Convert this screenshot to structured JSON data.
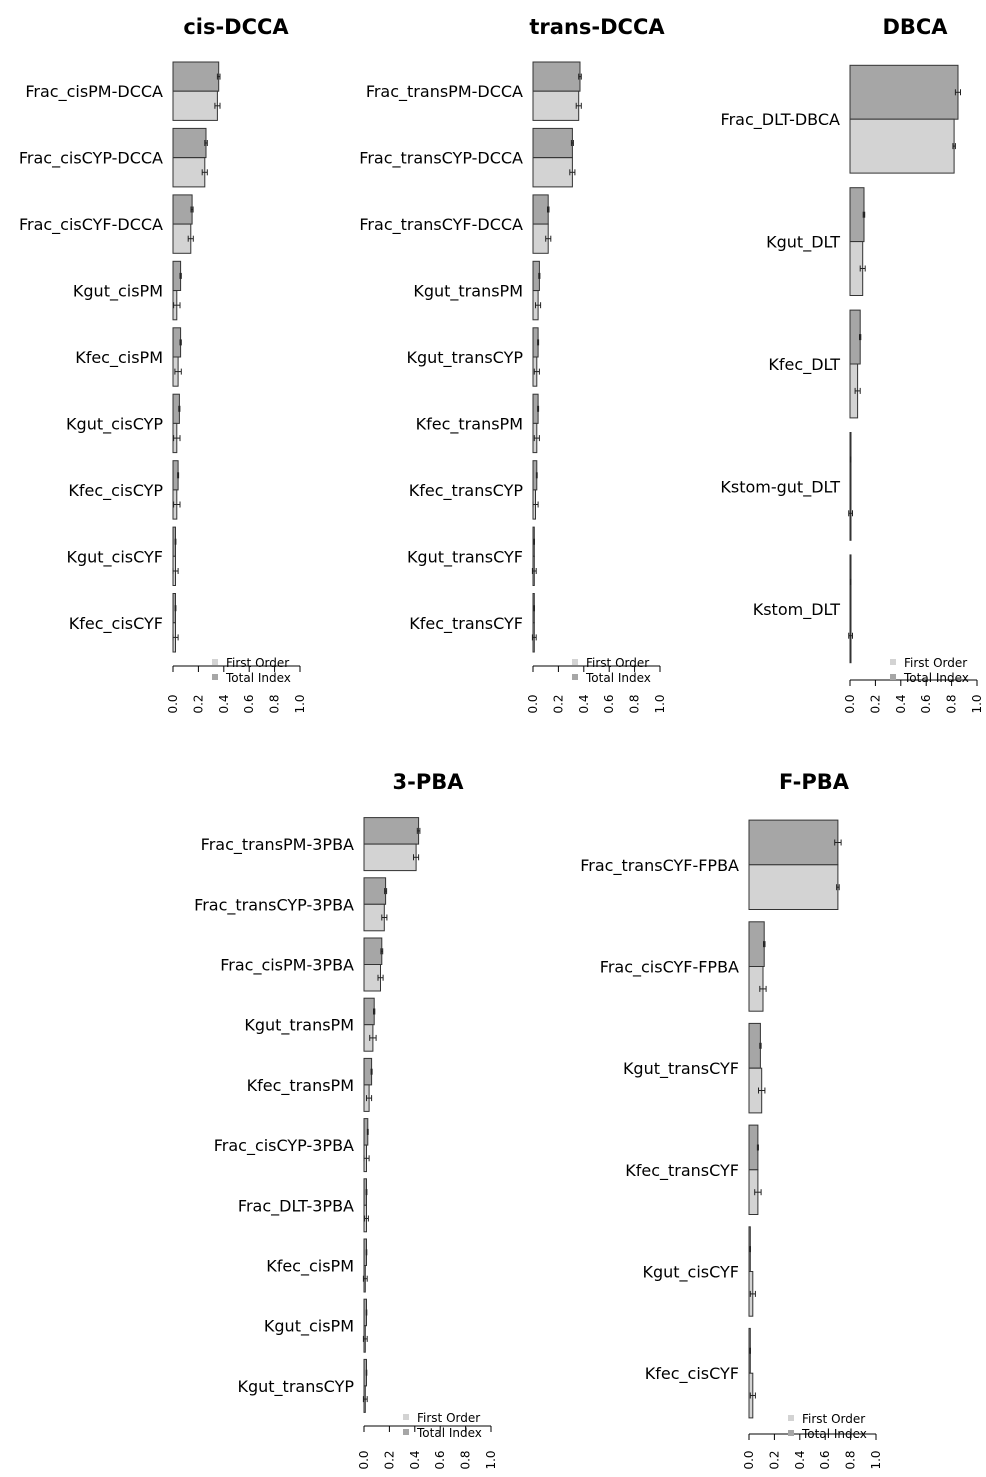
{
  "colors": {
    "first_order": "#d3d3d3",
    "total_index": "#a6a6a6",
    "stroke": "#333333",
    "error_bar": "#222222"
  },
  "chart_data": [
    {
      "type": "bar",
      "title": "cis-DCCA",
      "categories": [
        "Frac_cisPM-DCCA",
        "Frac_cisCYP-DCCA",
        "Frac_cisCYF-DCCA",
        "Kgut_cisPM",
        "Kfec_cisPM",
        "Kgut_cisCYP",
        "Kfec_cisCYP",
        "Kgut_cisCYF",
        "Kfec_cisCYF"
      ],
      "series": [
        {
          "name": "First Order",
          "values": [
            0.35,
            0.25,
            0.14,
            0.03,
            0.04,
            0.03,
            0.03,
            0.02,
            0.02
          ],
          "error": [
            0.02,
            0.02,
            0.02,
            0.025,
            0.025,
            0.025,
            0.025,
            0.02,
            0.02
          ]
        },
        {
          "name": "Total Index",
          "values": [
            0.36,
            0.26,
            0.15,
            0.06,
            0.06,
            0.05,
            0.04,
            0.02,
            0.02
          ],
          "error": [
            0.01,
            0.01,
            0.008,
            0.005,
            0.005,
            0.004,
            0.004,
            0.003,
            0.003
          ]
        }
      ],
      "xticks": [
        "0.0",
        "0.2",
        "0.4",
        "0.6",
        "0.8",
        "1.0"
      ],
      "xlim": [
        0,
        1
      ],
      "legend": "bottom-right"
    },
    {
      "type": "bar",
      "title": "trans-DCCA",
      "categories": [
        "Frac_transPM-DCCA",
        "Frac_transCYP-DCCA",
        "Frac_transCYF-DCCA",
        "Kgut_transPM",
        "Kgut_transCYP",
        "Kfec_transPM",
        "Kfec_transCYP",
        "Kgut_transCYF",
        "Kfec_transCYF"
      ],
      "series": [
        {
          "name": "First Order",
          "values": [
            0.36,
            0.31,
            0.12,
            0.04,
            0.03,
            0.03,
            0.02,
            0.01,
            0.01
          ],
          "error": [
            0.02,
            0.02,
            0.02,
            0.02,
            0.02,
            0.02,
            0.02,
            0.015,
            0.015
          ]
        },
        {
          "name": "Total Index",
          "values": [
            0.37,
            0.31,
            0.12,
            0.05,
            0.04,
            0.04,
            0.03,
            0.01,
            0.01
          ],
          "error": [
            0.01,
            0.008,
            0.006,
            0.004,
            0.004,
            0.004,
            0.003,
            0.002,
            0.002
          ]
        }
      ],
      "xticks": [
        "0.0",
        "0.2",
        "0.4",
        "0.6",
        "0.8",
        "1.0"
      ],
      "xlim": [
        0,
        1
      ],
      "legend": "bottom-right"
    },
    {
      "type": "bar",
      "title": "DBCA",
      "categories": [
        "Frac_DLT-DBCA",
        "Kgut_DLT",
        "Kfec_DLT",
        "Kstom-gut_DLT",
        "Kstom_DLT"
      ],
      "series": [
        {
          "name": "First Order",
          "values": [
            0.82,
            0.1,
            0.06,
            0.005,
            0.005
          ],
          "error": [
            0.01,
            0.02,
            0.02,
            0.015,
            0.015
          ]
        },
        {
          "name": "Total Index",
          "values": [
            0.85,
            0.11,
            0.08,
            0.005,
            0.005
          ],
          "error": [
            0.02,
            0.006,
            0.005,
            0.002,
            0.002
          ]
        }
      ],
      "xticks": [
        "0.0",
        "0.2",
        "0.4",
        "0.6",
        "0.8",
        "1.0"
      ],
      "xlim": [
        0,
        1
      ],
      "legend": "bottom-right"
    },
    {
      "type": "bar",
      "title": "3-PBA",
      "categories": [
        "Frac_transPM-3PBA",
        "Frac_transCYP-3PBA",
        "Frac_cisPM-3PBA",
        "Kgut_transPM",
        "Kfec_transPM",
        "Frac_cisCYP-3PBA",
        "Frac_DLT-3PBA",
        "Kfec_cisPM",
        "Kgut_cisPM",
        "Kgut_transCYP"
      ],
      "series": [
        {
          "name": "First Order",
          "values": [
            0.41,
            0.16,
            0.13,
            0.07,
            0.04,
            0.02,
            0.02,
            0.01,
            0.01,
            0.01
          ],
          "error": [
            0.02,
            0.02,
            0.02,
            0.025,
            0.02,
            0.02,
            0.015,
            0.015,
            0.015,
            0.015
          ]
        },
        {
          "name": "Total Index",
          "values": [
            0.43,
            0.17,
            0.14,
            0.08,
            0.06,
            0.03,
            0.02,
            0.02,
            0.02,
            0.02
          ],
          "error": [
            0.01,
            0.008,
            0.007,
            0.005,
            0.004,
            0.003,
            0.003,
            0.002,
            0.002,
            0.002
          ]
        }
      ],
      "xticks": [
        "0.0",
        "0.2",
        "0.4",
        "0.6",
        "0.8",
        "1.0"
      ],
      "xlim": [
        0,
        1
      ],
      "legend": "bottom-right"
    },
    {
      "type": "bar",
      "title": "F-PBA",
      "categories": [
        "Frac_transCYF-FPBA",
        "Frac_cisCYF-FPBA",
        "Kgut_transCYF",
        "Kfec_transCYF",
        "Kgut_cisCYF",
        "Kfec_cisCYF"
      ],
      "series": [
        {
          "name": "First Order",
          "values": [
            0.7,
            0.11,
            0.1,
            0.07,
            0.03,
            0.03
          ],
          "error": [
            0.01,
            0.025,
            0.025,
            0.025,
            0.02,
            0.02
          ]
        },
        {
          "name": "Total Index",
          "values": [
            0.7,
            0.12,
            0.09,
            0.07,
            0.01,
            0.01
          ],
          "error": [
            0.025,
            0.006,
            0.005,
            0.004,
            0.002,
            0.002
          ]
        }
      ],
      "xticks": [
        "0.0",
        "0.2",
        "0.4",
        "0.6",
        "0.8",
        "1.0"
      ],
      "xlim": [
        0,
        1
      ],
      "legend": "bottom-right"
    }
  ]
}
